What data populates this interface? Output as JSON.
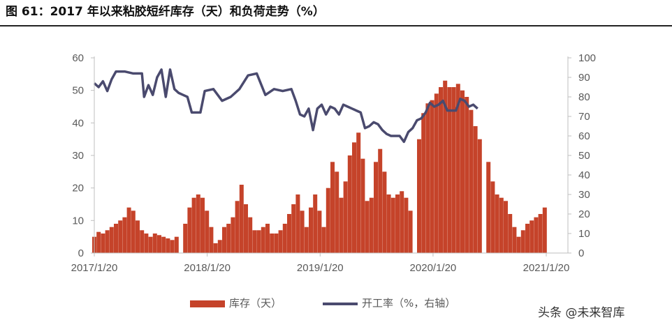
{
  "title": "图 61：2017 年以来粘胶短纤库存（天）和负荷走势（%）",
  "watermark": "头条 @未来智库",
  "colors": {
    "bar": "#c5432a",
    "line": "#4a4a6e",
    "axis": "#bfbfbf",
    "text": "#595959"
  },
  "chart_data": {
    "type": "bar",
    "title": "",
    "xlabel": "",
    "x_tick_labels": [
      "2017/1/20",
      "2018/1/20",
      "2019/1/20",
      "2020/1/20",
      "2021/1/20"
    ],
    "x_range": [
      "2017/1/20",
      "2021/3/31"
    ],
    "y_left": {
      "range": [
        0,
        60
      ],
      "ticks": [
        "0",
        "10",
        "20",
        "30",
        "40",
        "50",
        "60"
      ]
    },
    "y_right": {
      "range": [
        0,
        100
      ],
      "ticks": [
        "0",
        "10",
        "20",
        "30",
        "40",
        "50",
        "60",
        "70",
        "80",
        "90",
        "100"
      ]
    },
    "legend_placement": "bottom",
    "grid": false,
    "series": [
      {
        "name": "库存（天）",
        "type": "bar",
        "axis": "left",
        "points": [
          [
            "2017/1/20",
            5
          ],
          [
            "2017/2/3",
            6.5
          ],
          [
            "2017/2/17",
            6
          ],
          [
            "2017/3/3",
            7
          ],
          [
            "2017/3/17",
            8
          ],
          [
            "2017/3/31",
            9
          ],
          [
            "2017/4/14",
            10
          ],
          [
            "2017/4/28",
            11
          ],
          [
            "2017/5/12",
            14
          ],
          [
            "2017/5/26",
            13
          ],
          [
            "2017/6/9",
            10
          ],
          [
            "2017/6/23",
            7
          ],
          [
            "2017/7/7",
            6
          ],
          [
            "2017/7/21",
            5
          ],
          [
            "2017/8/4",
            6
          ],
          [
            "2017/8/18",
            5.5
          ],
          [
            "2017/9/1",
            5
          ],
          [
            "2017/9/15",
            4.5
          ],
          [
            "2017/9/29",
            4
          ],
          [
            "2017/10/13",
            5
          ],
          [
            "2017/10/27",
            0
          ],
          [
            "2017/11/10",
            9
          ],
          [
            "2017/11/24",
            14
          ],
          [
            "2017/12/8",
            17
          ],
          [
            "2017/12/22",
            18
          ],
          [
            "2018/1/5",
            17
          ],
          [
            "2018/1/19",
            13
          ],
          [
            "2018/2/2",
            8
          ],
          [
            "2018/2/16",
            3
          ],
          [
            "2018/3/2",
            4
          ],
          [
            "2018/3/16",
            8
          ],
          [
            "2018/3/30",
            9
          ],
          [
            "2018/4/13",
            11
          ],
          [
            "2018/4/27",
            16
          ],
          [
            "2018/5/11",
            21
          ],
          [
            "2018/5/25",
            15
          ],
          [
            "2018/6/8",
            11
          ],
          [
            "2018/6/22",
            7
          ],
          [
            "2018/7/6",
            7
          ],
          [
            "2018/7/20",
            8
          ],
          [
            "2018/8/3",
            9
          ],
          [
            "2018/8/17",
            6
          ],
          [
            "2018/8/31",
            6
          ],
          [
            "2018/9/14",
            7
          ],
          [
            "2018/9/28",
            9
          ],
          [
            "2018/10/12",
            12
          ],
          [
            "2018/10/26",
            15
          ],
          [
            "2018/11/9",
            18
          ],
          [
            "2018/11/23",
            13
          ],
          [
            "2018/12/7",
            8
          ],
          [
            "2018/12/21",
            14
          ],
          [
            "2019/1/4",
            18
          ],
          [
            "2019/1/18",
            13
          ],
          [
            "2019/2/1",
            8
          ],
          [
            "2019/2/15",
            20
          ],
          [
            "2019/3/1",
            28
          ],
          [
            "2019/3/15",
            25
          ],
          [
            "2019/3/29",
            17
          ],
          [
            "2019/4/12",
            22
          ],
          [
            "2019/4/26",
            30
          ],
          [
            "2019/5/10",
            34
          ],
          [
            "2019/5/24",
            37
          ],
          [
            "2019/6/7",
            29
          ],
          [
            "2019/6/21",
            16
          ],
          [
            "2019/7/5",
            17
          ],
          [
            "2019/7/19",
            28
          ],
          [
            "2019/8/2",
            32
          ],
          [
            "2019/8/16",
            25
          ],
          [
            "2019/8/30",
            18
          ],
          [
            "2019/9/13",
            17
          ],
          [
            "2019/9/27",
            18
          ],
          [
            "2019/10/11",
            19
          ],
          [
            "2019/10/25",
            17
          ],
          [
            "2019/11/8",
            13
          ],
          [
            "2019/11/22",
            0
          ],
          [
            "2019/12/6",
            35
          ],
          [
            "2019/12/20",
            43
          ],
          [
            "2020/1/3",
            46
          ],
          [
            "2020/1/17",
            47
          ],
          [
            "2020/1/31",
            49
          ],
          [
            "2020/2/14",
            51
          ],
          [
            "2020/2/28",
            53
          ],
          [
            "2020/3/13",
            51
          ],
          [
            "2020/3/27",
            51
          ],
          [
            "2020/4/10",
            52
          ],
          [
            "2020/4/24",
            50
          ],
          [
            "2020/5/8",
            48
          ],
          [
            "2020/5/22",
            44
          ],
          [
            "2020/6/5",
            39
          ],
          [
            "2020/6/19",
            35
          ],
          [
            "2020/7/3",
            0
          ],
          [
            "2020/7/17",
            28
          ],
          [
            "2020/7/31",
            22
          ],
          [
            "2020/8/14",
            18
          ],
          [
            "2020/8/28",
            17
          ],
          [
            "2020/9/11",
            16
          ],
          [
            "2020/9/25",
            12
          ],
          [
            "2020/10/9",
            8
          ],
          [
            "2020/10/23",
            5
          ],
          [
            "2020/11/6",
            7
          ],
          [
            "2020/11/20",
            9
          ],
          [
            "2020/12/4",
            10
          ],
          [
            "2020/12/18",
            11
          ],
          [
            "2021/1/1",
            12
          ],
          [
            "2021/1/15",
            14
          ]
        ]
      },
      {
        "name": "开工率（%，右轴）",
        "type": "line",
        "axis": "right",
        "points": [
          [
            "2017/1/20",
            87
          ],
          [
            "2017/2/3",
            85
          ],
          [
            "2017/2/17",
            88
          ],
          [
            "2017/3/3",
            83
          ],
          [
            "2017/3/17",
            89
          ],
          [
            "2017/3/31",
            93
          ],
          [
            "2017/4/28",
            93
          ],
          [
            "2017/5/26",
            92
          ],
          [
            "2017/6/23",
            92
          ],
          [
            "2017/6/30",
            80
          ],
          [
            "2017/7/14",
            86
          ],
          [
            "2017/7/28",
            81
          ],
          [
            "2017/8/11",
            90
          ],
          [
            "2017/8/25",
            94
          ],
          [
            "2017/9/8",
            80
          ],
          [
            "2017/9/22",
            94
          ],
          [
            "2017/10/6",
            84
          ],
          [
            "2017/10/20",
            82
          ],
          [
            "2017/11/3",
            81
          ],
          [
            "2017/11/17",
            80
          ],
          [
            "2017/12/1",
            72
          ],
          [
            "2017/12/15",
            72
          ],
          [
            "2017/12/29",
            72
          ],
          [
            "2018/1/12",
            83
          ],
          [
            "2018/2/9",
            84
          ],
          [
            "2018/3/9",
            78
          ],
          [
            "2018/4/6",
            80
          ],
          [
            "2018/5/4",
            84
          ],
          [
            "2018/6/1",
            91
          ],
          [
            "2018/6/29",
            92
          ],
          [
            "2018/7/27",
            81
          ],
          [
            "2018/8/24",
            84
          ],
          [
            "2018/9/21",
            83
          ],
          [
            "2018/10/19",
            84
          ],
          [
            "2018/11/2",
            78
          ],
          [
            "2018/11/16",
            71
          ],
          [
            "2018/11/30",
            70
          ],
          [
            "2018/12/14",
            74
          ],
          [
            "2018/12/28",
            63
          ],
          [
            "2019/1/11",
            74
          ],
          [
            "2019/1/25",
            76
          ],
          [
            "2019/2/8",
            71
          ],
          [
            "2019/2/22",
            75
          ],
          [
            "2019/3/8",
            74
          ],
          [
            "2019/3/22",
            71
          ],
          [
            "2019/4/5",
            76
          ],
          [
            "2019/4/19",
            75
          ],
          [
            "2019/5/3",
            74
          ],
          [
            "2019/5/17",
            73
          ],
          [
            "2019/5/31",
            72
          ],
          [
            "2019/6/14",
            64
          ],
          [
            "2019/6/28",
            65
          ],
          [
            "2019/7/12",
            67
          ],
          [
            "2019/7/26",
            66
          ],
          [
            "2019/8/9",
            63
          ],
          [
            "2019/8/23",
            61
          ],
          [
            "2019/9/6",
            60
          ],
          [
            "2019/9/20",
            60
          ],
          [
            "2019/10/4",
            60
          ],
          [
            "2019/10/18",
            57
          ],
          [
            "2019/11/1",
            62
          ],
          [
            "2019/11/15",
            64
          ],
          [
            "2019/11/29",
            68
          ],
          [
            "2019/12/13",
            69
          ],
          [
            "2019/12/27",
            72
          ],
          [
            "2020/1/10",
            77
          ],
          [
            "2020/1/24",
            75
          ],
          [
            "2020/2/7",
            76
          ],
          [
            "2020/2/21",
            78
          ],
          [
            "2020/3/6",
            73
          ],
          [
            "2020/3/20",
            73
          ],
          [
            "2020/4/3",
            73
          ],
          [
            "2020/4/17",
            79
          ],
          [
            "2020/5/1",
            78
          ],
          [
            "2020/5/15",
            75
          ],
          [
            "2020/5/29",
            76
          ],
          [
            "2020/6/12",
            74
          ]
        ]
      }
    ]
  }
}
